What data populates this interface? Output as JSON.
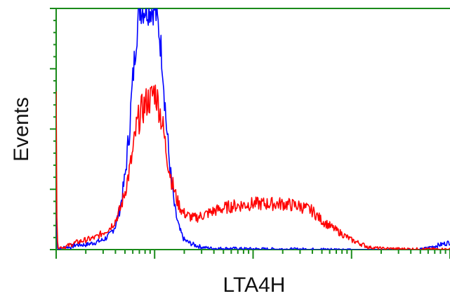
{
  "chart_data": {
    "type": "line",
    "title": "",
    "xlabel": "LTA4H",
    "ylabel": "Events",
    "xscale": "log",
    "xlim": [
      1,
      10000
    ],
    "ylim": [
      0,
      100
    ],
    "grid": false,
    "legend": "none",
    "series": [
      {
        "color": "#0000ff",
        "x": [
          1.0,
          1.02,
          1.06,
          1.2,
          1.4,
          1.6,
          2.0,
          2.5,
          3.0,
          3.5,
          4.0,
          4.5,
          5.0,
          5.5,
          6.0,
          6.5,
          7.0,
          7.5,
          8.0,
          8.5,
          9.0,
          9.5,
          10.0,
          11.0,
          12.0,
          13.0,
          14.0,
          15.0,
          16.0,
          17.0,
          18.0,
          19.0,
          20.0,
          22.0,
          25.0,
          30.0,
          40.0,
          60.0,
          100.0,
          200.0,
          500.0,
          1000.0,
          2000.0,
          5000.0,
          10000.0
        ],
        "y": [
          30,
          2,
          0,
          1,
          1,
          2,
          2,
          3,
          4,
          6,
          10,
          18,
          30,
          48,
          70,
          88,
          100,
          100,
          100,
          100,
          100,
          100,
          100,
          92,
          78,
          55,
          38,
          26,
          17,
          12,
          8,
          6,
          4,
          3,
          2,
          1,
          0.5,
          0.5,
          0.3,
          0.2,
          0.1,
          0,
          0,
          0,
          3
        ]
      },
      {
        "color": "#ff0000",
        "x": [
          1.0,
          1.02,
          1.06,
          1.2,
          1.4,
          1.6,
          2.0,
          2.5,
          3.0,
          3.5,
          4.0,
          4.5,
          5.0,
          5.5,
          6.0,
          6.5,
          7.0,
          7.5,
          8.0,
          8.5,
          9.0,
          9.5,
          10.0,
          11.0,
          12.0,
          13.0,
          14.0,
          15.0,
          16.0,
          17.0,
          18.0,
          19.0,
          20.0,
          22.0,
          25.0,
          30.0,
          40.0,
          60.0,
          100.0,
          150.0,
          200.0,
          300.0,
          400.0,
          500.0,
          700.0,
          1000.0,
          1500.0,
          2000.0,
          3000.0,
          5000.0,
          10000.0
        ],
        "y": [
          70,
          3,
          1,
          1,
          2,
          3,
          4,
          5,
          7,
          9,
          12,
          17,
          24,
          32,
          40,
          50,
          55,
          58,
          60,
          62,
          62,
          64,
          66,
          60,
          52,
          42,
          34,
          28,
          24,
          20,
          18,
          16,
          15,
          14,
          13,
          14,
          16,
          18,
          19,
          19,
          19,
          18,
          16,
          12,
          8,
          4,
          1,
          0.5,
          0.3,
          0.2,
          0.1
        ]
      }
    ]
  }
}
